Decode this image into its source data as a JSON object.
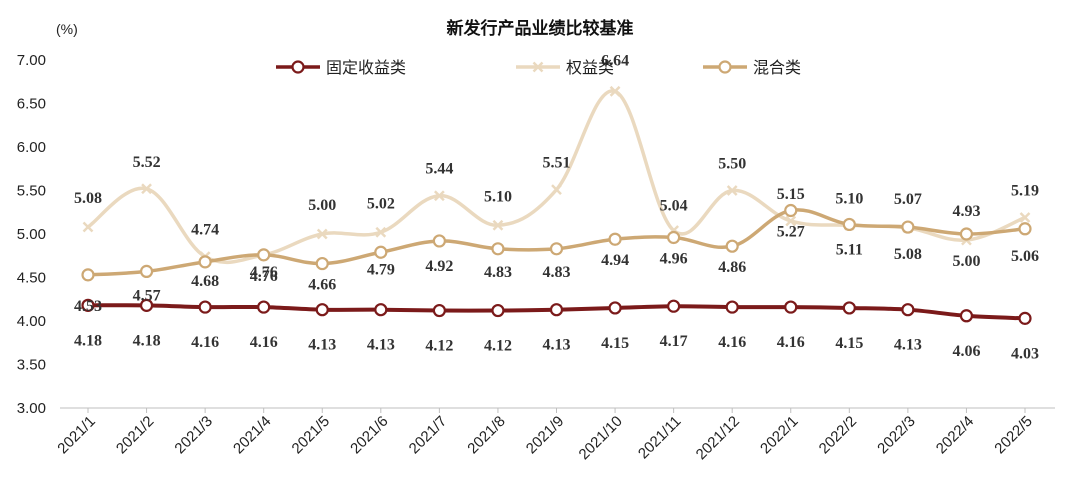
{
  "chart_data": {
    "type": "line",
    "title": "新发行产品业绩比较基准",
    "unit_label": "(%)",
    "ylim": [
      3.0,
      7.0
    ],
    "yticks": [
      "3.00",
      "3.50",
      "4.00",
      "4.50",
      "5.00",
      "5.50",
      "6.00",
      "6.50",
      "7.00"
    ],
    "categories": [
      "2021/1",
      "2021/2",
      "2021/3",
      "2021/4",
      "2021/5",
      "2021/6",
      "2021/7",
      "2021/8",
      "2021/9",
      "2021/10",
      "2021/11",
      "2021/12",
      "2022/1",
      "2022/2",
      "2022/3",
      "2022/4",
      "2022/5"
    ],
    "series": [
      {
        "name": "固定收益类",
        "color": "#7b1a1a",
        "values": [
          4.18,
          4.18,
          4.16,
          4.16,
          4.13,
          4.13,
          4.12,
          4.12,
          4.13,
          4.15,
          4.17,
          4.16,
          4.16,
          4.15,
          4.13,
          4.06,
          4.03
        ],
        "labels": [
          "4.18",
          "4.18",
          "4.16",
          "4.16",
          "4.13",
          "4.13",
          "4.12",
          "4.12",
          "4.13",
          "4.15",
          "4.17",
          "4.16",
          "4.16",
          "4.15",
          "4.13",
          "4.06",
          "4.03"
        ]
      },
      {
        "name": "权益类",
        "color": "#ead9bf",
        "values": [
          5.08,
          5.52,
          4.74,
          4.76,
          5.0,
          5.02,
          5.44,
          5.1,
          5.51,
          6.64,
          5.04,
          5.5,
          5.15,
          5.1,
          5.07,
          4.93,
          5.19
        ],
        "labels": [
          "5.08",
          "5.52",
          "4.74",
          "4.76",
          "5.00",
          "5.02",
          "5.44",
          "5.10",
          "5.51",
          "6.64",
          "5.04",
          "5.50",
          "5.15",
          "5.10",
          "5.07",
          "4.93",
          "5.19"
        ]
      },
      {
        "name": "混合类",
        "color": "#cda874",
        "values": [
          4.53,
          4.57,
          4.68,
          4.76,
          4.66,
          4.79,
          4.92,
          4.83,
          4.83,
          4.94,
          4.96,
          4.86,
          5.27,
          5.11,
          5.08,
          5.0,
          5.06
        ],
        "labels": [
          "4.53",
          "4.57",
          "4.68",
          "4.76",
          "4.66",
          "4.79",
          "4.92",
          "4.83",
          "4.83",
          "4.94",
          "4.96",
          "4.86",
          "5.27",
          "5.11",
          "5.08",
          "5.00",
          "5.06"
        ]
      }
    ],
    "legend_position": "top"
  }
}
